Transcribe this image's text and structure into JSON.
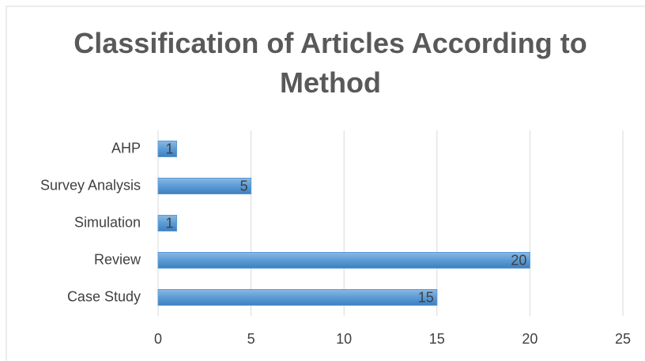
{
  "chart_data": {
    "type": "bar",
    "orientation": "horizontal",
    "title": "Classification of Articles According to Method",
    "categories": [
      "AHP",
      "Survey Analysis",
      "Simulation",
      "Review",
      "Case Study"
    ],
    "values": [
      1,
      5,
      1,
      20,
      15
    ],
    "color": "#5b9bd5",
    "xlim": [
      0,
      25
    ],
    "xticks": [
      0,
      5,
      10,
      15,
      20,
      25
    ],
    "grid": true
  }
}
